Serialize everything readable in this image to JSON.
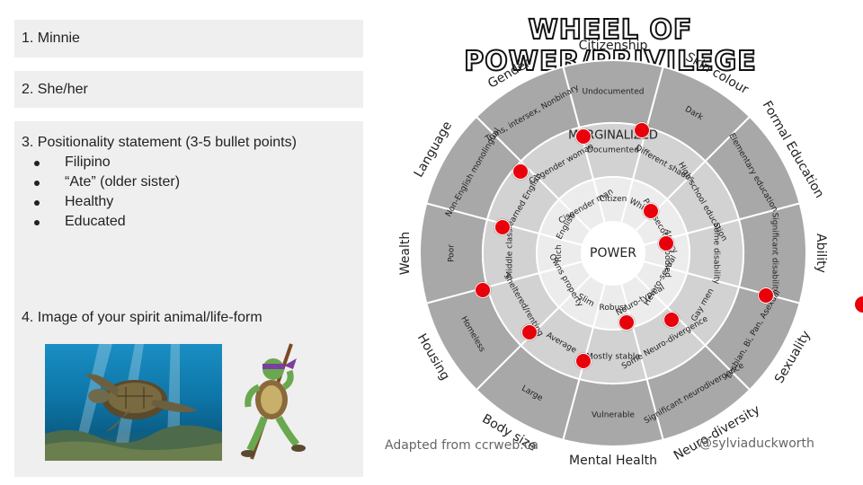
{
  "form": {
    "name": "1. Minnie",
    "pronouns": "2. She/her",
    "positionality_title": "3. Positionality statement (3-5 bullet points)",
    "positionality_bullets": [
      "Filipino",
      "“Ate” (older sister)",
      "Healthy",
      "Educated"
    ],
    "spirit_title": "4. Image of your spirit animal/life-form",
    "spirit_images": [
      "sea-turtle",
      "ninja-turtle"
    ]
  },
  "wheel": {
    "title": "WHEEL OF POWER/PRIVILEGE",
    "center_label": "POWER",
    "marginalized_label": "MARGINALIZED",
    "credit_left": "Adapted from ccrweb.ca",
    "credit_right": "@sylviaduckworth",
    "categories": [
      "Citizenship",
      "Skin colour",
      "Formal Education",
      "Ability",
      "Sexuality",
      "Neuro-diversity",
      "Mental Health",
      "Body size",
      "Housing",
      "Wealth",
      "Language",
      "Gender"
    ],
    "outer_ring": [
      "Undocumented",
      "Dark",
      "Elementary education",
      "Significant disability",
      "Lesbian, Bi, Pan, Asexual",
      "Significant neurodivergence",
      "Vulnerable",
      "Large",
      "Homeless",
      "Poor",
      "Non-English monolingual",
      "Trans, intersex, Nonbinary"
    ],
    "middle_ring": [
      "Documented",
      "Different shades",
      "High school education",
      "Some disability",
      "Gay men",
      "Some Neuro-divergence",
      "Mostly stable",
      "Average",
      "Sheltered/renting",
      "Middle class",
      "Learned English",
      "Cisgender woman"
    ],
    "inner_ring": [
      "Citizen",
      "White",
      "Post-secondary",
      "Able-bodied",
      "Hetero-sexual",
      "Neuro-typical",
      "Robust",
      "Slim",
      "Owns property",
      "Rich",
      "English",
      "Cisgender man"
    ],
    "colors": {
      "outer": "#a8a8a8",
      "middle": "#d2d2d2",
      "inner": "#ececec",
      "marker": "#e8000a"
    }
  }
}
